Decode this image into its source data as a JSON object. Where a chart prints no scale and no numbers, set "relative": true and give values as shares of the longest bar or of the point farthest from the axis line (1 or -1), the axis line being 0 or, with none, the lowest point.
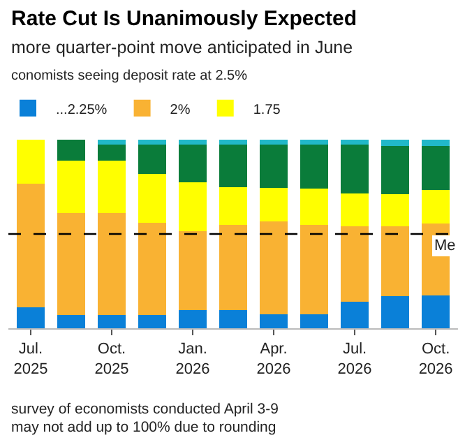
{
  "chart_data": {
    "type": "bar",
    "stacked": true,
    "relative": true,
    "title": "Rate Cut Is Unanimously Expected",
    "subtitle": "more quarter-point move anticipated in June",
    "legend_title": "conomists seeing deposit rate at 2.5%",
    "legend": "top",
    "categories": [
      "Jul.\n2025",
      null,
      "Oct.\n2025",
      null,
      "Jan.\n2026",
      null,
      "Apr.\n2026",
      null,
      "Jul.\n2026",
      null,
      "Oct.\n2026"
    ],
    "series": [
      {
        "name": "...2.25%",
        "color": "#0a80d8",
        "values": [
          0.11,
          0.07,
          0.07,
          0.07,
          0.095,
          0.095,
          0.075,
          0.075,
          0.14,
          0.17,
          0.175
        ]
      },
      {
        "name": "2%",
        "color": "#f9b233",
        "values": [
          0.655,
          0.54,
          0.54,
          0.49,
          0.42,
          0.455,
          0.49,
          0.475,
          0.4,
          0.37,
          0.38
        ]
      },
      {
        "name": "1.75",
        "color": "#ffff00",
        "values": [
          0.235,
          0.28,
          0.28,
          0.26,
          0.26,
          0.2,
          0.18,
          0.19,
          0.175,
          0.17,
          0.18
        ]
      },
      {
        "color": "#0a7c3a",
        "values": [
          0,
          0.11,
          0.085,
          0.155,
          0.2,
          0.225,
          0.23,
          0.235,
          0.26,
          0.255,
          0.23
        ]
      },
      {
        "color": "#21b8c9",
        "values": [
          0,
          0,
          0.025,
          0.025,
          0.025,
          0.025,
          0.025,
          0.025,
          0.025,
          0.035,
          0.035
        ]
      }
    ],
    "ref_lines": [
      {
        "axis": "y",
        "value": 0.5,
        "label": "Me",
        "line_style": "dashed",
        "color": "#000000"
      }
    ],
    "annotations": [
      "survey of economists conducted April 3-9",
      "may not add up to 100% due to rounding"
    ]
  }
}
